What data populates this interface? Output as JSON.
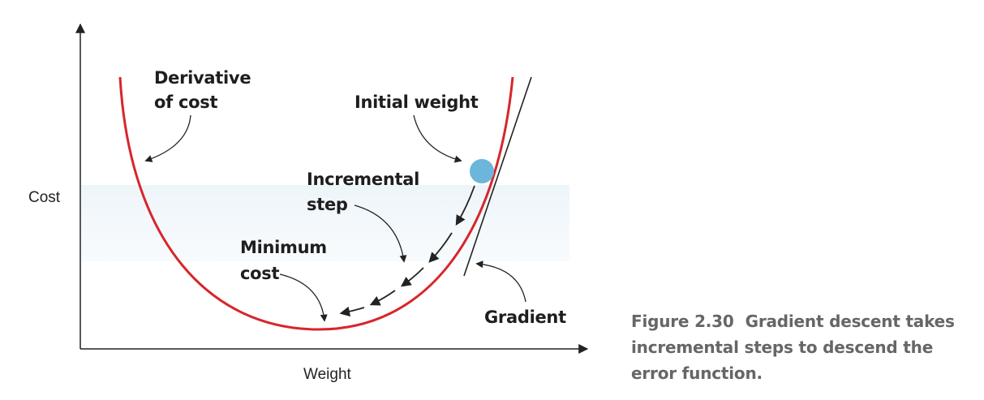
{
  "figure": {
    "axes": {
      "y_label": "Cost",
      "x_label": "Weight"
    },
    "annotations": {
      "derivative": [
        "Derivative",
        "of cost"
      ],
      "initial_weight": "Initial weight",
      "incremental_step": [
        "Incremental",
        "step"
      ],
      "minimum_cost": [
        "Minimum",
        "cost"
      ],
      "gradient": "Gradient"
    },
    "caption": {
      "number": "Figure 2.30",
      "lines": [
        "Gradient descent takes",
        "incremental steps to descend the",
        "error function."
      ]
    },
    "colors": {
      "curve": "#d7262c",
      "ball": "#6bb6da",
      "band": "#f1f7fb",
      "caption": "#666666"
    }
  }
}
